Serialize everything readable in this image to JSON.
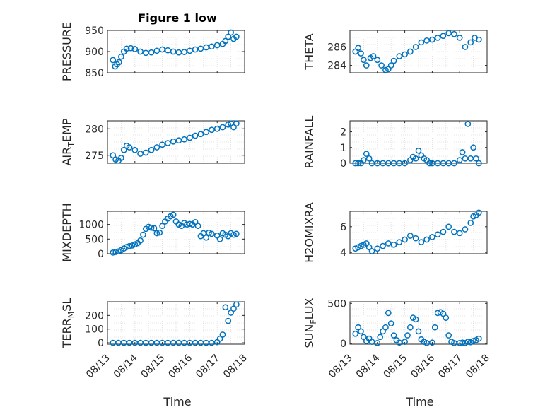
{
  "figure": {
    "title": "Figure 1 low",
    "marker_color": "#0072bd",
    "grid_color": "#dcdcdc",
    "axis_color": "#262626",
    "x_tick_labels": [
      "08/13",
      "08/14",
      "08/15",
      "08/16",
      "08/17",
      "08/18"
    ],
    "x_label": "Time"
  },
  "chart_data": [
    {
      "type": "scatter",
      "ylabel": "PRESSURE",
      "ylabel_sub": "",
      "ylim": [
        850,
        950
      ],
      "yticks": [
        850,
        900,
        950
      ],
      "xlim": [
        0,
        5
      ],
      "grid": true,
      "legend": "none",
      "x": [
        0.2,
        0.28,
        0.35,
        0.42,
        0.5,
        0.6,
        0.7,
        0.85,
        1.0,
        1.2,
        1.4,
        1.6,
        1.8,
        2.0,
        2.2,
        2.4,
        2.6,
        2.8,
        3.0,
        3.2,
        3.4,
        3.6,
        3.8,
        4.0,
        4.2,
        4.3,
        4.4,
        4.5,
        4.6,
        4.7
      ],
      "y": [
        880,
        865,
        870,
        875,
        888,
        900,
        907,
        908,
        906,
        900,
        897,
        898,
        902,
        905,
        903,
        900,
        898,
        899,
        902,
        905,
        907,
        910,
        912,
        915,
        918,
        925,
        935,
        945,
        930,
        935
      ]
    },
    {
      "type": "scatter",
      "ylabel": "THETA",
      "ylabel_sub": "",
      "ylim": [
        283.2,
        287.8
      ],
      "yticks": [
        284,
        286
      ],
      "xlim": [
        0,
        5
      ],
      "grid": true,
      "legend": "none",
      "x": [
        0.2,
        0.3,
        0.4,
        0.5,
        0.6,
        0.75,
        0.85,
        1.0,
        1.15,
        1.3,
        1.4,
        1.5,
        1.6,
        1.8,
        2.0,
        2.2,
        2.4,
        2.6,
        2.8,
        3.0,
        3.2,
        3.4,
        3.6,
        3.8,
        4.0,
        4.2,
        4.4,
        4.55,
        4.7
      ],
      "y": [
        285.5,
        285.9,
        285.3,
        284.6,
        284.0,
        284.8,
        285.0,
        284.6,
        284.0,
        283.5,
        283.6,
        284.0,
        284.5,
        285.0,
        285.2,
        285.5,
        286.0,
        286.5,
        286.7,
        286.8,
        287.0,
        287.2,
        287.5,
        287.4,
        287.0,
        286.0,
        286.5,
        287.0,
        286.8
      ]
    },
    {
      "type": "scatter",
      "ylabel": "AIR",
      "ylabel_sub": "T",
      "ylabel_tail": "EMP",
      "ylim": [
        273.5,
        281.5
      ],
      "yticks": [
        275,
        280
      ],
      "xlim": [
        0,
        5
      ],
      "grid": true,
      "legend": "none",
      "x": [
        0.2,
        0.3,
        0.4,
        0.5,
        0.6,
        0.7,
        0.8,
        1.0,
        1.2,
        1.4,
        1.6,
        1.8,
        2.0,
        2.2,
        2.4,
        2.6,
        2.8,
        3.0,
        3.2,
        3.4,
        3.6,
        3.8,
        4.0,
        4.2,
        4.4,
        4.5,
        4.6,
        4.7
      ],
      "y": [
        275.0,
        274.2,
        274.0,
        274.5,
        276.0,
        276.8,
        276.5,
        276.0,
        275.3,
        275.5,
        276.0,
        276.5,
        277.0,
        277.3,
        277.6,
        277.8,
        278.0,
        278.3,
        278.7,
        279.0,
        279.4,
        279.8,
        280.0,
        280.3,
        280.8,
        281.0,
        280.3,
        281.0
      ]
    },
    {
      "type": "scatter",
      "ylabel": "RAINFALL",
      "ylabel_sub": "",
      "ylim": [
        0,
        2.7
      ],
      "yticks": [
        0,
        1,
        2
      ],
      "xlim": [
        0,
        5
      ],
      "grid": true,
      "legend": "none",
      "x": [
        0.2,
        0.3,
        0.4,
        0.5,
        0.6,
        0.7,
        0.8,
        1.0,
        1.2,
        1.4,
        1.6,
        1.8,
        2.0,
        2.2,
        2.3,
        2.4,
        2.5,
        2.6,
        2.7,
        2.8,
        2.9,
        3.0,
        3.2,
        3.4,
        3.6,
        3.8,
        4.0,
        4.1,
        4.2,
        4.3,
        4.4,
        4.5,
        4.6,
        4.7
      ],
      "y": [
        0,
        0,
        0,
        0.2,
        0.6,
        0.3,
        0,
        0,
        0,
        0,
        0,
        0,
        0,
        0.2,
        0.4,
        0.3,
        0.8,
        0.5,
        0.3,
        0.2,
        0,
        0,
        0,
        0,
        0,
        0,
        0.2,
        0.7,
        0.3,
        2.5,
        0.3,
        1.0,
        0.3,
        0
      ]
    },
    {
      "type": "scatter",
      "ylabel": "MIXDEPTH",
      "ylabel_sub": "",
      "ylim": [
        0,
        1450
      ],
      "yticks": [
        0,
        500,
        1000
      ],
      "xlim": [
        0,
        5
      ],
      "grid": true,
      "legend": "none",
      "x": [
        0.2,
        0.3,
        0.4,
        0.5,
        0.6,
        0.7,
        0.8,
        0.9,
        1.0,
        1.1,
        1.2,
        1.3,
        1.4,
        1.5,
        1.6,
        1.7,
        1.8,
        1.9,
        2.0,
        2.1,
        2.2,
        2.3,
        2.4,
        2.5,
        2.6,
        2.7,
        2.8,
        2.9,
        3.0,
        3.1,
        3.2,
        3.3,
        3.4,
        3.5,
        3.6,
        3.7,
        3.8,
        4.0,
        4.1,
        4.2,
        4.3,
        4.4,
        4.5,
        4.6,
        4.7
      ],
      "y": [
        40,
        60,
        80,
        120,
        180,
        230,
        260,
        280,
        320,
        360,
        450,
        650,
        850,
        920,
        890,
        870,
        700,
        720,
        950,
        1100,
        1200,
        1280,
        1330,
        1100,
        1000,
        950,
        1050,
        1000,
        1020,
        1000,
        1080,
        950,
        600,
        700,
        550,
        720,
        680,
        620,
        500,
        700,
        650,
        600,
        700,
        650,
        680
      ]
    },
    {
      "type": "scatter",
      "ylabel": "H2OMIXRA",
      "ylabel_sub": "",
      "ylim": [
        3.9,
        7.2
      ],
      "yticks": [
        4,
        6
      ],
      "xlim": [
        0,
        5
      ],
      "grid": true,
      "legend": "none",
      "x": [
        0.2,
        0.3,
        0.4,
        0.5,
        0.6,
        0.7,
        0.8,
        1.0,
        1.2,
        1.4,
        1.6,
        1.8,
        2.0,
        2.2,
        2.4,
        2.6,
        2.8,
        3.0,
        3.2,
        3.4,
        3.6,
        3.8,
        4.0,
        4.2,
        4.4,
        4.5,
        4.6,
        4.7
      ],
      "y": [
        4.3,
        4.4,
        4.5,
        4.6,
        4.7,
        4.4,
        4.1,
        4.3,
        4.5,
        4.7,
        4.6,
        4.8,
        5.0,
        5.3,
        5.1,
        4.8,
        5.0,
        5.2,
        5.4,
        5.6,
        6.0,
        5.6,
        5.5,
        5.8,
        6.3,
        6.8,
        6.9,
        7.1
      ]
    },
    {
      "type": "scatter",
      "ylabel": "TERR",
      "ylabel_sub": "M",
      "ylabel_tail": "SL",
      "ylim": [
        -10,
        300
      ],
      "yticks": [
        0,
        100,
        200
      ],
      "xlim": [
        0,
        5
      ],
      "grid": true,
      "legend": "none",
      "x": [
        0.2,
        0.4,
        0.6,
        0.8,
        1.0,
        1.2,
        1.4,
        1.6,
        1.8,
        2.0,
        2.2,
        2.4,
        2.6,
        2.8,
        3.0,
        3.2,
        3.4,
        3.6,
        3.8,
        4.0,
        4.1,
        4.2,
        4.3,
        4.4,
        4.5,
        4.6,
        4.7
      ],
      "y": [
        0,
        0,
        0,
        0,
        0,
        0,
        0,
        0,
        0,
        0,
        0,
        0,
        0,
        0,
        0,
        0,
        0,
        0,
        0,
        5,
        30,
        60,
        260,
        160,
        220,
        250,
        280
      ]
    },
    {
      "type": "scatter",
      "ylabel": "SUN",
      "ylabel_sub": "F",
      "ylabel_tail": "LUX",
      "ylim": [
        -10,
        520
      ],
      "yticks": [
        0,
        500
      ],
      "xlim": [
        0,
        5
      ],
      "grid": true,
      "legend": "none",
      "x": [
        0.2,
        0.3,
        0.4,
        0.5,
        0.6,
        0.7,
        0.8,
        1.0,
        1.1,
        1.2,
        1.3,
        1.4,
        1.5,
        1.6,
        1.7,
        1.8,
        2.0,
        2.1,
        2.2,
        2.3,
        2.4,
        2.5,
        2.6,
        2.7,
        2.8,
        3.0,
        3.1,
        3.2,
        3.3,
        3.4,
        3.5,
        3.6,
        3.7,
        3.8,
        4.0,
        4.1,
        4.2,
        4.3,
        4.4,
        4.5,
        4.6,
        4.7
      ],
      "y": [
        120,
        200,
        150,
        80,
        30,
        60,
        20,
        5,
        80,
        150,
        200,
        380,
        250,
        100,
        40,
        10,
        20,
        100,
        200,
        320,
        300,
        150,
        50,
        20,
        5,
        10,
        200,
        380,
        390,
        370,
        320,
        100,
        20,
        5,
        5,
        10,
        5,
        20,
        15,
        30,
        40,
        60
      ]
    }
  ]
}
